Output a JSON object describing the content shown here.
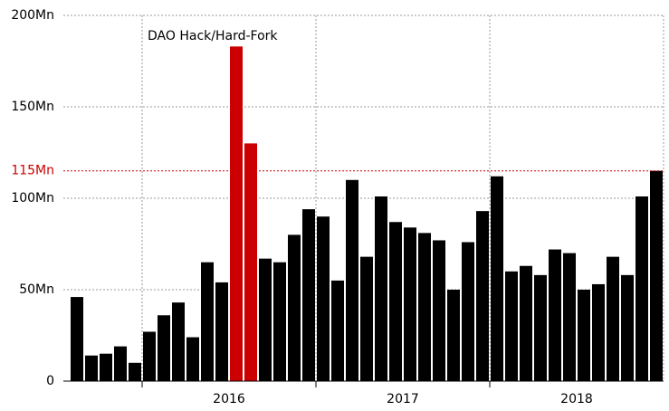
{
  "chart_data": {
    "type": "bar",
    "categories": [
      null,
      null,
      null,
      null,
      null,
      null,
      null,
      null,
      null,
      null,
      null,
      null,
      null,
      null,
      null,
      null,
      null,
      null,
      null,
      null,
      null,
      null,
      null,
      null,
      null,
      null,
      null,
      null,
      null,
      null,
      null,
      null,
      null,
      null,
      null,
      null,
      null,
      null,
      null,
      null,
      null
    ],
    "values": [
      46,
      14,
      15,
      19,
      10,
      27,
      36,
      43,
      24,
      65,
      54,
      183,
      130,
      67,
      65,
      80,
      94,
      90,
      55,
      110,
      68,
      101,
      87,
      84,
      81,
      77,
      50,
      76,
      93,
      112,
      60,
      63,
      58,
      72,
      70,
      50,
      53,
      68,
      58,
      101,
      115
    ],
    "color": "#000000",
    "highlight": [
      11,
      12
    ],
    "highlight_color": "#cc0000",
    "x_groups": [
      {
        "label": null,
        "count": 5
      },
      {
        "label": "2016",
        "count": 12
      },
      {
        "label": "2017",
        "count": 12
      },
      {
        "label": "2018",
        "count": 12
      }
    ],
    "ylim": [
      0,
      200
    ],
    "yticks": [
      0,
      {
        "value": 50,
        "label": "50Mn"
      },
      {
        "value": 100,
        "label": "100Mn"
      },
      {
        "value": 150,
        "label": "150Mn"
      },
      {
        "value": 200,
        "label": "200Mn"
      }
    ],
    "reference_line": {
      "value": 115,
      "label": "115Mn",
      "color": "#cc0000"
    },
    "annotation": {
      "text": "DAO Hack/Hard-Fork",
      "index": 11
    },
    "grid": true
  }
}
